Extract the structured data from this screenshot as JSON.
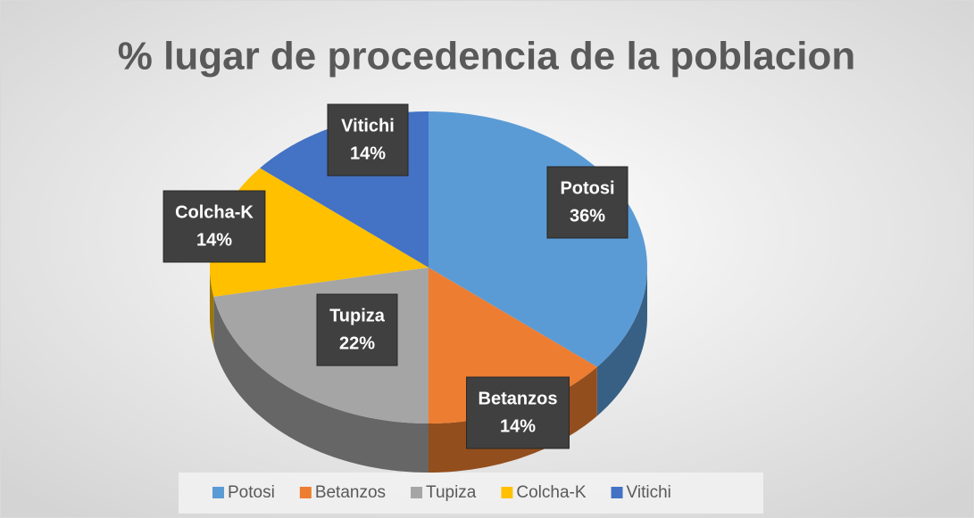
{
  "chart_data": {
    "type": "pie",
    "title": "% lugar de procedencia de la poblacion",
    "categories": [
      "Potosi",
      "Betanzos",
      "Tupiza",
      "Colcha-K",
      "Vitichi"
    ],
    "values": [
      36,
      14,
      22,
      14,
      14
    ],
    "value_labels": [
      "36%",
      "14%",
      "22%",
      "14%",
      "14%"
    ],
    "colors": [
      "#5b9bd5",
      "#ed7d31",
      "#a5a5a5",
      "#ffc000",
      "#4472c4"
    ],
    "legend": "bottom"
  }
}
